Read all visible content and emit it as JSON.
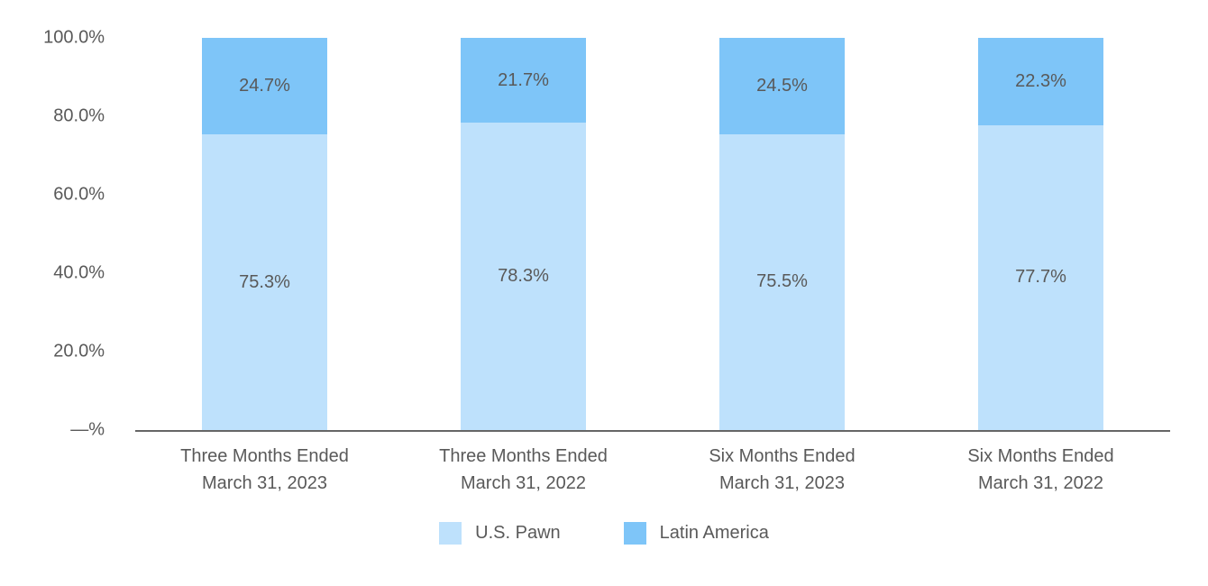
{
  "chart_data": {
    "type": "bar",
    "stacked": true,
    "orientation": "vertical",
    "title": "",
    "xlabel": "",
    "ylabel": "",
    "grid": false,
    "background": "#FFFFFF",
    "text_color": "#595959",
    "axis_line_color": "#666666",
    "categories": [
      [
        "Three Months Ended",
        "March 31, 2023"
      ],
      [
        "Three Months Ended",
        "March 31, 2022"
      ],
      [
        "Six Months Ended",
        "March 31, 2023"
      ],
      [
        "Six Months Ended",
        "March 31, 2022"
      ]
    ],
    "series": [
      {
        "name": "U.S. Pawn",
        "color": "#BEE1FC",
        "values": [
          75.3,
          78.3,
          75.5,
          77.7
        ],
        "data_labels": [
          "75.3%",
          "78.3%",
          "75.5%",
          "77.7%"
        ]
      },
      {
        "name": "Latin America",
        "color": "#7EC5F8",
        "values": [
          24.7,
          21.7,
          24.5,
          22.3
        ],
        "data_labels": [
          "24.7%",
          "21.7%",
          "24.5%",
          "22.3%"
        ]
      }
    ],
    "y_axis": {
      "min": 0,
      "max": 100,
      "ticks": [
        {
          "value": 100,
          "label": "100.0%"
        },
        {
          "value": 80,
          "label": "80.0%"
        },
        {
          "value": 60,
          "label": "60.0%"
        },
        {
          "value": 40,
          "label": "40.0%"
        },
        {
          "value": 20,
          "label": "20.0%"
        },
        {
          "value": 0,
          "label": "—%"
        }
      ]
    },
    "legend": {
      "position": "bottom",
      "items": [
        {
          "label": "U.S. Pawn",
          "color": "#BEE1FC"
        },
        {
          "label": "Latin America",
          "color": "#7EC5F8"
        }
      ]
    }
  }
}
